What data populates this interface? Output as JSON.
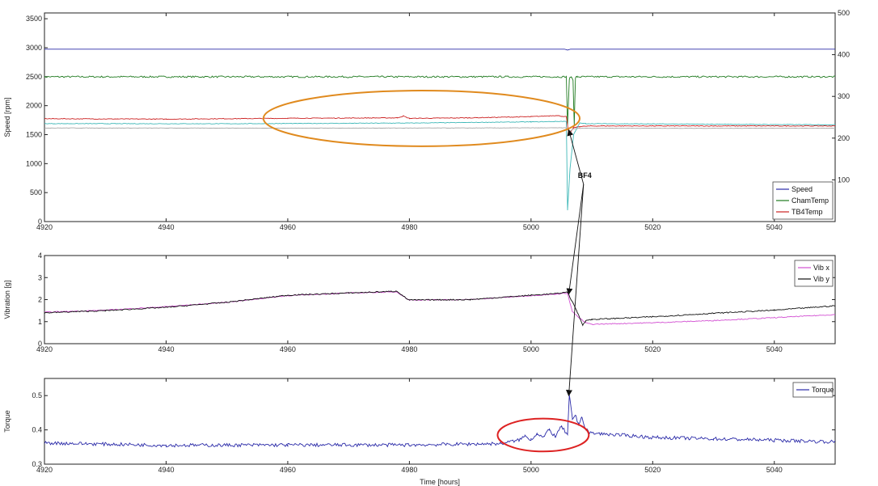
{
  "chart_data": [
    {
      "type": "line",
      "xlabel": "",
      "ylabel": "Speed [rpm]",
      "ylabel_color": "#3333cc",
      "y2label": "",
      "xlim": [
        4920,
        5050
      ],
      "ylim": [
        0,
        3600
      ],
      "y2lim": [
        0,
        500
      ],
      "xticks": [
        4920,
        4940,
        4960,
        4980,
        5000,
        5020,
        5040
      ],
      "yticks": [
        0,
        500,
        1000,
        1500,
        2000,
        2500,
        3000,
        3500
      ],
      "y2ticks": [
        100,
        200,
        300,
        400,
        500
      ],
      "y2tick_color": "#228822",
      "grid": false,
      "legend_position": "lower-right",
      "series": [
        {
          "name": "Speed",
          "color": "#2a2aa8",
          "axis": "left",
          "x": [
            4920,
            5005.5,
            5006,
            5006.5,
            5050
          ],
          "values": [
            2975,
            2975,
            2960,
            2975,
            2975
          ]
        },
        {
          "name": "ChamTemp",
          "color": "#1f7a1f",
          "axis": "right",
          "x": [
            4920,
            5005.8,
            5006,
            5006.3,
            5006.6,
            5006.9,
            5007.1,
            5007.3,
            5007.6,
            5050
          ],
          "values": [
            347,
            347,
            230,
            342,
            347,
            340,
            230,
            345,
            347,
            347
          ],
          "noise": 2
        },
        {
          "name": "TB4Temp",
          "color": "#cc2222",
          "axis": "left",
          "x": [
            4920,
            4940,
            4960,
            4978,
            4979,
            4980,
            4985,
            4990,
            5000,
            5004,
            5005.8,
            5006.2,
            5007,
            5008,
            5010,
            5050
          ],
          "values": [
            1775,
            1768,
            1782,
            1790,
            1820,
            1780,
            1785,
            1790,
            1810,
            1830,
            1810,
            1500,
            1620,
            1640,
            1650,
            1650
          ],
          "noise": 6
        },
        {
          "name": "",
          "color": "#3fb8b8",
          "axis": "left",
          "x": [
            4920,
            4950,
            4980,
            5000,
            5005.8,
            5006,
            5006.4,
            5007,
            5008,
            5009,
            5050
          ],
          "values": [
            1690,
            1688,
            1700,
            1720,
            1730,
            200,
            900,
            1500,
            1700,
            1690,
            1670
          ],
          "noise": 5
        },
        {
          "name": "",
          "color": "#a8a8a8",
          "axis": "left",
          "x": [
            4920,
            4960,
            4990,
            5005.8,
            5006.2,
            5007,
            5008,
            5050
          ],
          "values": [
            1615,
            1612,
            1615,
            1618,
            1550,
            1600,
            1610,
            1610
          ],
          "noise": 3
        }
      ],
      "annotations": [
        {
          "type": "ellipse",
          "color": "#e08a1e",
          "cx": 4982,
          "cy": 1780,
          "rx": 26,
          "ry": 480
        },
        {
          "type": "label",
          "text": "BF4",
          "x": 5008.5,
          "y": 700
        }
      ]
    },
    {
      "type": "line",
      "xlabel": "",
      "ylabel": "Vibration [g]",
      "xlim": [
        4920,
        5050
      ],
      "ylim": [
        0,
        4
      ],
      "xticks": [
        4920,
        4940,
        4960,
        4980,
        5000,
        5020,
        5040
      ],
      "yticks": [
        0,
        1,
        2,
        3,
        4
      ],
      "grid": false,
      "legend_position": "top-right",
      "series": [
        {
          "name": "Vib x",
          "color": "#d24fd2",
          "x": [
            4920,
            4930,
            4940,
            4950,
            4960,
            4970,
            4978,
            4979.5,
            4980,
            4990,
            5000,
            5004,
            5006,
            5006.3,
            5006.8,
            5008,
            5009,
            5010,
            5020,
            5030,
            5040,
            5050
          ],
          "values": [
            1.43,
            1.52,
            1.68,
            1.88,
            2.18,
            2.3,
            2.35,
            2.05,
            1.98,
            2.0,
            2.18,
            2.25,
            2.3,
            1.95,
            1.45,
            1.15,
            0.95,
            0.88,
            0.95,
            1.05,
            1.18,
            1.32
          ],
          "noise": 0.02
        },
        {
          "name": "Vib y",
          "color": "#111111",
          "x": [
            4920,
            4930,
            4940,
            4950,
            4960,
            4970,
            4978,
            4979.5,
            4980,
            4990,
            5000,
            5004,
            5006,
            5006.5,
            5007.5,
            5008.5,
            5009,
            5010,
            5020,
            5030,
            5040,
            5050
          ],
          "values": [
            1.4,
            1.5,
            1.65,
            1.88,
            2.2,
            2.3,
            2.38,
            2.05,
            1.98,
            2.0,
            2.2,
            2.27,
            2.34,
            2.05,
            1.5,
            0.85,
            1.05,
            1.1,
            1.22,
            1.38,
            1.52,
            1.72
          ],
          "noise": 0.025
        }
      ],
      "annotations": []
    },
    {
      "type": "line",
      "xlabel": "Time [hours]",
      "ylabel": "Torque",
      "xlim": [
        4920,
        5050
      ],
      "ylim": [
        0.3,
        0.55
      ],
      "xticks": [
        4920,
        4940,
        4960,
        4980,
        5000,
        5020,
        5040
      ],
      "yticks": [
        0.3,
        0.4,
        0.5
      ],
      "ytick_labels": [
        "0.3",
        "0.4",
        "0.5"
      ],
      "grid": false,
      "legend_position": "top-right",
      "series": [
        {
          "name": "Torque",
          "color": "#2a2aa8",
          "x": [
            4920,
            4940,
            4960,
            4980,
            4995,
            4998,
            4999,
            5000,
            5001,
            5002,
            5003,
            5004,
            5005,
            5006,
            5006.3,
            5006.8,
            5007.3,
            5007.8,
            5008.3,
            5009,
            5010,
            5015,
            5020,
            5030,
            5040,
            5050
          ],
          "values": [
            0.362,
            0.355,
            0.356,
            0.356,
            0.36,
            0.37,
            0.382,
            0.372,
            0.39,
            0.378,
            0.4,
            0.38,
            0.41,
            0.385,
            0.5,
            0.43,
            0.445,
            0.415,
            0.44,
            0.4,
            0.39,
            0.385,
            0.378,
            0.374,
            0.37,
            0.365
          ],
          "noise": 0.005
        }
      ],
      "annotations": [
        {
          "type": "ellipse",
          "color": "#dd2222",
          "cx": 5002,
          "cy": 0.385,
          "rx": 7.5,
          "ry": 0.048
        }
      ]
    }
  ]
}
